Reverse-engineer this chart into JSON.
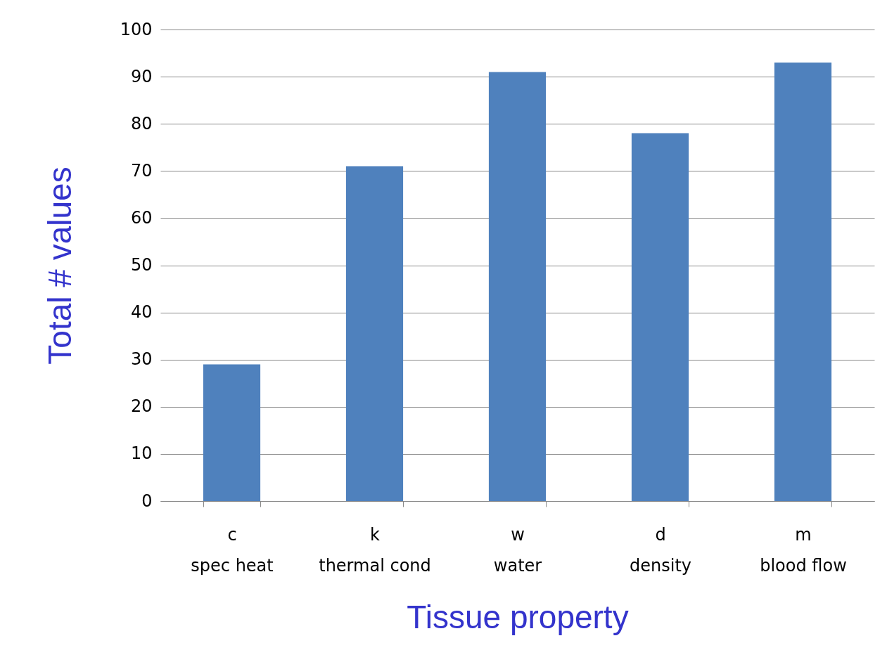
{
  "chart_data": {
    "type": "bar",
    "xlabel": "Tissue property",
    "ylabel": "Total # values",
    "categories": [
      "c\nspec heat",
      "k\nthermal cond",
      "w\nwater",
      "d\ndensity",
      "m\nblood flow"
    ],
    "values": [
      29,
      71,
      91,
      78,
      93
    ],
    "color": "#4f81bd",
    "ylim": [
      0,
      100
    ],
    "yticks": [
      0,
      10,
      20,
      30,
      40,
      50,
      60,
      70,
      80,
      90,
      100
    ],
    "grid": "y"
  }
}
